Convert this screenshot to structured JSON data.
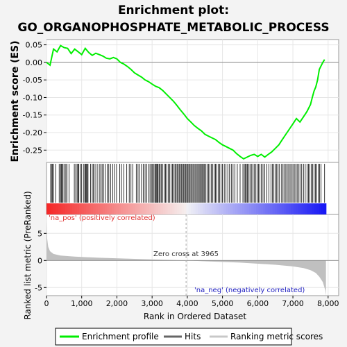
{
  "title_line1": "Enrichment plot:",
  "title_line2": "GO_ORGANOPHOSPHATE_METABOLIC_PROCESS",
  "chart_data": {
    "type": "line",
    "xlabel": "Rank in Ordered Dataset",
    "x_ticks": [
      "0",
      "1,000",
      "2,000",
      "3,000",
      "4,000",
      "5,000",
      "6,000",
      "7,000",
      "8,000"
    ],
    "xlim": [
      0,
      8300
    ],
    "es_panel": {
      "ylabel": "Enrichment score (ES)",
      "y_ticks": [
        "0.05",
        "0.00",
        "-0.05",
        "-0.10",
        "-0.15",
        "-0.20",
        "-0.25"
      ],
      "ylim": [
        -0.285,
        0.065
      ],
      "series": [
        {
          "name": "Enrichment profile",
          "color": "#00ee00",
          "x": [
            0,
            100,
            200,
            300,
            400,
            500,
            600,
            700,
            800,
            900,
            1000,
            1100,
            1200,
            1300,
            1400,
            1500,
            1600,
            1700,
            1800,
            1900,
            2000,
            2100,
            2200,
            2300,
            2400,
            2500,
            2600,
            2700,
            2800,
            2900,
            3000,
            3100,
            3200,
            3300,
            3400,
            3500,
            3600,
            3700,
            3800,
            3900,
            4000,
            4100,
            4200,
            4300,
            4400,
            4500,
            4600,
            4700,
            4800,
            4900,
            5000,
            5100,
            5200,
            5300,
            5400,
            5500,
            5600,
            5700,
            5800,
            5900,
            6000,
            6100,
            6200,
            6300,
            6400,
            6500,
            6600,
            6700,
            6800,
            6900,
            7000,
            7100,
            7200,
            7300,
            7400,
            7500,
            7550,
            7600,
            7650,
            7700,
            7750,
            7800,
            7850,
            7900
          ],
          "y": [
            0.0,
            -0.008,
            0.038,
            0.03,
            0.048,
            0.042,
            0.04,
            0.025,
            0.038,
            0.03,
            0.022,
            0.04,
            0.028,
            0.02,
            0.026,
            0.022,
            0.018,
            0.012,
            0.01,
            0.014,
            0.01,
            0.0,
            -0.005,
            -0.012,
            -0.02,
            -0.03,
            -0.036,
            -0.042,
            -0.05,
            -0.055,
            -0.062,
            -0.068,
            -0.072,
            -0.08,
            -0.09,
            -0.1,
            -0.11,
            -0.122,
            -0.135,
            -0.147,
            -0.16,
            -0.17,
            -0.18,
            -0.188,
            -0.195,
            -0.205,
            -0.21,
            -0.215,
            -0.22,
            -0.228,
            -0.235,
            -0.24,
            -0.245,
            -0.25,
            -0.26,
            -0.268,
            -0.275,
            -0.27,
            -0.265,
            -0.262,
            -0.268,
            -0.262,
            -0.27,
            -0.262,
            -0.255,
            -0.245,
            -0.235,
            -0.22,
            -0.205,
            -0.19,
            -0.175,
            -0.16,
            -0.17,
            -0.155,
            -0.14,
            -0.12,
            -0.1,
            -0.082,
            -0.07,
            -0.05,
            -0.02,
            -0.01,
            0.0,
            0.008
          ]
        }
      ]
    },
    "hits_panel": {
      "label": "Hits",
      "hits": [
        120,
        140,
        170,
        200,
        260,
        360,
        400,
        420,
        440,
        470,
        510,
        550,
        580,
        640,
        790,
        830,
        870,
        900,
        920,
        970,
        1000,
        1060,
        1090,
        1110,
        1130,
        1160,
        1180,
        1250,
        1300,
        1330,
        1380,
        1440,
        1500,
        1540,
        1580,
        1620,
        1670,
        1730,
        1770,
        1820,
        1880,
        1930,
        1990,
        2080,
        2130,
        2200,
        2280,
        2350,
        2400,
        2450,
        2550,
        2600,
        2640,
        2700,
        2750,
        2800,
        2850,
        2900,
        2940,
        2980,
        3010,
        3050,
        3080,
        3100,
        3130,
        3150,
        3170,
        3200,
        3230,
        3260,
        3300,
        3340,
        3380,
        3420,
        3460,
        3500,
        3540,
        3580,
        3620,
        3650,
        3680,
        3710,
        3740,
        3770,
        3800,
        3830,
        3860,
        3890,
        3920,
        3950,
        3980,
        4010,
        4040,
        4070,
        4100,
        4130,
        4160,
        4190,
        4220,
        4250,
        4280,
        4310,
        4340,
        4370,
        4400,
        4430,
        4460,
        4490,
        4520,
        4560,
        4600,
        4640,
        4680,
        4720,
        4760,
        4800,
        4840,
        4880,
        4920,
        4960,
        5000,
        5050,
        5100,
        5150,
        5200,
        5250,
        5300,
        5350,
        5420,
        5500,
        5580,
        5620,
        5650,
        5680,
        5710,
        5740,
        5780,
        5820,
        5860,
        5900,
        5940,
        5980,
        6020,
        6060,
        6100,
        6150,
        6200,
        6260,
        6320,
        6380,
        6420,
        6460,
        6500,
        6540,
        6580,
        6620,
        6680,
        6720,
        6760,
        6800,
        6840,
        6880,
        6920,
        6960,
        7000,
        7040,
        7080,
        7120,
        7160,
        7200,
        7250,
        7300,
        7350,
        7400,
        7440,
        7480,
        7520,
        7560,
        7600,
        7640,
        7680,
        7720,
        7760,
        7800,
        7900
      ]
    },
    "metric_panel": {
      "ylabel": "Ranked list metric (PreRanked)",
      "y_ticks": [
        "5",
        "0",
        "-5"
      ],
      "ylim": [
        -6.5,
        8.5
      ],
      "zero_cross_label": "Zero cross at 3965",
      "zero_cross": 3965,
      "pos_label": "'na_pos' (positively correlated)",
      "neg_label": "'na_neg' (negatively correlated)",
      "profile_x": [
        0,
        20,
        50,
        100,
        200,
        400,
        800,
        1500,
        2500,
        3500,
        3965,
        4500,
        5500,
        6500,
        7000,
        7300,
        7500,
        7650,
        7750,
        7850,
        7920,
        7940
      ],
      "profile_y": [
        7.5,
        4.0,
        2.5,
        1.7,
        1.2,
        0.9,
        0.7,
        0.5,
        0.3,
        0.1,
        0.0,
        -0.15,
        -0.4,
        -0.8,
        -1.1,
        -1.4,
        -1.8,
        -2.3,
        -3.0,
        -4.0,
        -5.5,
        -6.5
      ]
    },
    "legend": [
      "Enrichment profile",
      "Hits",
      "Ranking metric scores"
    ],
    "colors": {
      "profile": "#00ee00",
      "hits": "#000000",
      "metric_fill": "#c0c0c0",
      "pos_text": "#e03030",
      "neg_text": "#2020c0"
    }
  }
}
